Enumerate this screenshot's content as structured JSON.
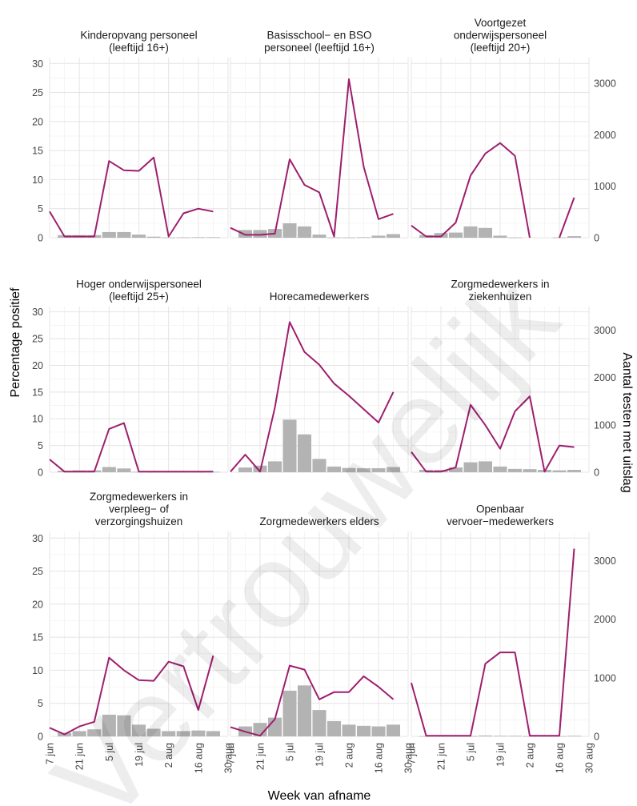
{
  "watermark": "Vertrouwelijk",
  "chart_data": {
    "type": "bar+line",
    "layout": "facet-grid-3x3",
    "xlabel": "Week van afname",
    "ylabel_left": "Percentage positief",
    "ylabel_right": "Aantal testen met uitslag",
    "x": [
      "2020-06-07",
      "2020-06-14",
      "2020-06-21",
      "2020-06-28",
      "2020-07-05",
      "2020-07-12",
      "2020-07-19",
      "2020-07-26",
      "2020-08-02",
      "2020-08-09",
      "2020-08-16",
      "2020-08-23"
    ],
    "x_ticks": [
      {
        "date": "2020-06-07",
        "label": "7 jun"
      },
      {
        "date": "2020-06-21",
        "label": "21 jun"
      },
      {
        "date": "2020-07-05",
        "label": "5 jul"
      },
      {
        "date": "2020-07-19",
        "label": "19 jul"
      },
      {
        "date": "2020-08-02",
        "label": "2 aug"
      },
      {
        "date": "2020-08-16",
        "label": "16 aug"
      },
      {
        "date": "2020-08-30",
        "label": "30 aug"
      }
    ],
    "xlim": [
      "2020-06-07",
      "2020-08-30"
    ],
    "y_left_ticks": [
      0,
      5,
      10,
      15,
      20,
      25,
      30
    ],
    "y_left_lim": [
      0,
      31
    ],
    "y_right_ticks": [
      0,
      1000,
      2000,
      3000
    ],
    "y_right_lim": [
      0,
      3500
    ],
    "grid": true,
    "bars_series": "Aantal testen met uitslag",
    "line_series": "Percentage positief",
    "panels": [
      {
        "title": [
          "Kinderopvang personeel",
          "(leeftijd 16+)"
        ],
        "line": [
          4.5,
          0.2,
          0.2,
          0.2,
          13.2,
          11.6,
          11.5,
          13.8,
          0.2,
          4.2,
          5.0,
          4.5
        ],
        "bars": [
          null,
          50,
          50,
          50,
          110,
          110,
          60,
          20,
          5,
          8,
          10,
          10
        ]
      },
      {
        "title": [
          "Basisschool− en BSO",
          "personeel (leeftijd 16+)"
        ],
        "line": [
          1.7,
          0.5,
          0.5,
          0.7,
          13.5,
          9.1,
          7.8,
          0.2,
          27.3,
          12.2,
          3.2,
          4.1
        ],
        "bars": [
          null,
          150,
          150,
          170,
          280,
          220,
          60,
          5,
          5,
          10,
          40,
          70
        ]
      },
      {
        "title": [
          "Voortgezet",
          "onderwijspersoneel",
          "(leeftijd 20+)"
        ],
        "line": [
          2.1,
          0.2,
          0.2,
          2.6,
          10.7,
          14.5,
          16.3,
          14.1,
          0.0,
          null,
          0.0,
          6.9
        ],
        "bars": [
          null,
          50,
          90,
          100,
          220,
          190,
          40,
          5,
          0,
          null,
          5,
          30
        ]
      },
      {
        "title": [
          "Hoger onderwijspersoneel",
          "(leeftijd 25+)"
        ],
        "line": [
          2.4,
          0.1,
          0.1,
          0.1,
          8.1,
          9.2,
          0.1,
          0.1,
          0.1,
          0.1,
          0.1,
          0.1
        ],
        "bars": [
          null,
          30,
          40,
          40,
          110,
          80,
          10,
          5,
          5,
          5,
          5,
          10
        ]
      },
      {
        "title": [
          "Horecamedewerkers"
        ],
        "line": [
          0.1,
          3.3,
          0.1,
          12.1,
          28.1,
          22.5,
          20.1,
          16.6,
          14.3,
          11.8,
          9.3,
          15.0
        ],
        "bars": [
          null,
          100,
          140,
          230,
          1110,
          800,
          280,
          120,
          90,
          85,
          85,
          110
        ]
      },
      {
        "title": [
          "Zorgmedewerkers in",
          "ziekenhuizen"
        ],
        "line": [
          3.8,
          0.1,
          0.1,
          0.9,
          12.6,
          8.8,
          4.4,
          11.4,
          14.2,
          0.1,
          5.0,
          4.7
        ],
        "bars": [
          null,
          50,
          50,
          100,
          210,
          230,
          120,
          70,
          65,
          50,
          40,
          50
        ]
      },
      {
        "title": [
          "Zorgmedewerkers in",
          "verpleeg− of",
          "verzorgingshuizen"
        ],
        "line": [
          1.3,
          0.3,
          1.5,
          2.2,
          11.9,
          10.0,
          8.5,
          8.4,
          11.3,
          10.6,
          4.0,
          12.2
        ],
        "bars": [
          null,
          60,
          90,
          120,
          370,
          360,
          200,
          130,
          90,
          90,
          100,
          90
        ]
      },
      {
        "title": [
          "Zorgmedewerkers elders"
        ],
        "line": [
          1.4,
          0.7,
          0.1,
          2.6,
          10.7,
          10.1,
          5.6,
          6.7,
          6.7,
          9.1,
          7.5,
          5.6
        ],
        "bars": [
          null,
          170,
          230,
          320,
          780,
          870,
          450,
          260,
          200,
          180,
          170,
          200
        ]
      },
      {
        "title": [
          "Openbaar",
          "vervoer−medewerkers"
        ],
        "line": [
          8.1,
          0.1,
          0.1,
          0.1,
          0.1,
          11.0,
          12.7,
          12.7,
          0.1,
          0.1,
          0.1,
          28.4
        ],
        "bars": [
          null,
          5,
          5,
          5,
          5,
          15,
          10,
          10,
          5,
          5,
          5,
          10
        ]
      }
    ]
  }
}
